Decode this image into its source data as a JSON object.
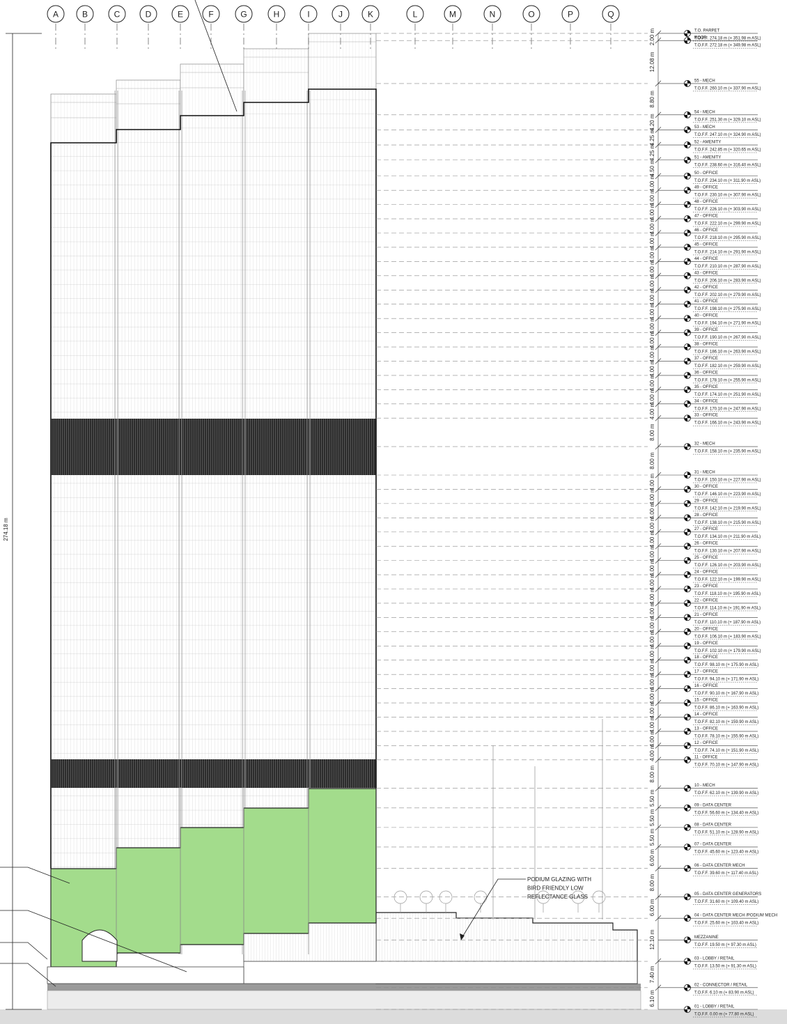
{
  "grid_lines": [
    "A",
    "B",
    "C",
    "D",
    "E",
    "F",
    "G",
    "H",
    "I",
    "J",
    "K",
    "L",
    "M",
    "N",
    "O",
    "P",
    "Q"
  ],
  "overall_height": "274.18 m",
  "annotation": [
    "PODIUM GLAZING WITH",
    "BIRD FRIENDLY LOW",
    "REFLECTANCE GLASS"
  ],
  "levels": [
    {
      "name": "T.O. PARPET",
      "elevation": "T.O.F.F. 274.18 m (+ 351.98 m ASL)"
    },
    {
      "name": "ROOF",
      "elevation": "T.O.F.F. 272.18 m (+ 349.98 m ASL)"
    },
    {
      "name": "55 - MECH",
      "elevation": "T.O.F.F. 260.10 m (+ 337.90 m ASL)"
    },
    {
      "name": "54 - MECH",
      "elevation": "T.O.F.F. 251.30 m (+ 329.10 m ASL)"
    },
    {
      "name": "53 - MECH",
      "elevation": "T.O.F.F. 247.10 m (+ 324.90 m ASL)"
    },
    {
      "name": "52 - AMENITY",
      "elevation": "T.O.F.F. 242.85 m (+ 320.65 m ASL)"
    },
    {
      "name": "51 - AMENITY",
      "elevation": "T.O.F.F. 238.60 m (+ 316.40 m ASL)"
    },
    {
      "name": "50 - OFFICE",
      "elevation": "T.O.F.F. 234.10 m (+ 311.90 m ASL)"
    },
    {
      "name": "49 - OFFICE",
      "elevation": "T.O.F.F. 230.10 m (+ 307.90 m ASL)"
    },
    {
      "name": "48 - OFFICE",
      "elevation": "T.O.F.F. 226.10 m (+ 303.90 m ASL)"
    },
    {
      "name": "47 - OFFICE",
      "elevation": "T.O.F.F. 222.10 m (+ 299.90 m ASL)"
    },
    {
      "name": "46 - OFFICE",
      "elevation": "T.O.F.F. 218.10 m (+ 295.90 m ASL)"
    },
    {
      "name": "45 - OFFICE",
      "elevation": "T.O.F.F. 214.10 m (+ 291.90 m ASL)"
    },
    {
      "name": "44 - OFFICE",
      "elevation": "T.O.F.F. 210.10 m (+ 287.90 m ASL)"
    },
    {
      "name": "43 - OFFICE",
      "elevation": "T.O.F.F. 206.10 m (+ 283.90 m ASL)"
    },
    {
      "name": "42 - OFFICE",
      "elevation": "T.O.F.F. 202.10 m (+ 279.90 m ASL)"
    },
    {
      "name": "41 - OFFICE",
      "elevation": "T.O.F.F. 198.10 m (+ 275.90 m ASL)"
    },
    {
      "name": "40 - OFFICE",
      "elevation": "T.O.F.F. 194.10 m (+ 271.90 m ASL)"
    },
    {
      "name": "39 - OFFICE",
      "elevation": "T.O.F.F. 190.10 m (+ 267.90 m ASL)"
    },
    {
      "name": "38 - OFFICE",
      "elevation": "T.O.F.F. 186.10 m (+ 263.90 m ASL)"
    },
    {
      "name": "37 - OFFICE",
      "elevation": "T.O.F.F. 182.10 m (+ 259.90 m ASL)"
    },
    {
      "name": "36 - OFFICE",
      "elevation": "T.O.F.F. 178.10 m (+ 255.90 m ASL)"
    },
    {
      "name": "35 - OFFICE",
      "elevation": "T.O.F.F. 174.10 m (+ 251.90 m ASL)"
    },
    {
      "name": "34 - OFFICE",
      "elevation": "T.O.F.F. 170.10 m (+ 247.90 m ASL)"
    },
    {
      "name": "33 - OFFICE",
      "elevation": "T.O.F.F. 166.10 m (+ 243.90 m ASL)"
    },
    {
      "name": "32 - MECH",
      "elevation": "T.O.F.F. 158.10 m (+ 235.90 m ASL)"
    },
    {
      "name": "31 - MECH",
      "elevation": "T.O.F.F. 150.10 m (+ 227.90 m ASL)"
    },
    {
      "name": "30 - OFFICE",
      "elevation": "T.O.F.F. 146.10 m (+ 223.90 m ASL)"
    },
    {
      "name": "29 - OFFICE",
      "elevation": "T.O.F.F. 142.10 m (+ 219.90 m ASL)"
    },
    {
      "name": "28 - OFFICE",
      "elevation": "T.O.F.F. 138.10 m (+ 215.90 m ASL)"
    },
    {
      "name": "27 - OFFICE",
      "elevation": "T.O.F.F. 134.10 m (+ 211.90 m ASL)"
    },
    {
      "name": "26 - OFFICE",
      "elevation": "T.O.F.F. 130.10 m (+ 207.90 m ASL)"
    },
    {
      "name": "25 - OFFICE",
      "elevation": "T.O.F.F. 126.10 m (+ 203.90 m ASL)"
    },
    {
      "name": "24 - OFFICE",
      "elevation": "T.O.F.F. 122.10 m (+ 199.90 m ASL)"
    },
    {
      "name": "23 - OFFICE",
      "elevation": "T.O.F.F. 118.10 m (+ 195.90 m ASL)"
    },
    {
      "name": "22 - OFFICE",
      "elevation": "T.O.F.F. 114.10 m (+ 191.90 m ASL)"
    },
    {
      "name": "21 - OFFICE",
      "elevation": "T.O.F.F. 110.10 m (+ 187.90 m ASL)"
    },
    {
      "name": "20 - OFFICE",
      "elevation": "T.O.F.F. 106.10 m (+ 183.90 m ASL)"
    },
    {
      "name": "19 - OFFICE",
      "elevation": "T.O.F.F. 102.10 m (+ 179.90 m ASL)"
    },
    {
      "name": "18 - OFFICE",
      "elevation": "T.O.F.F. 98.10 m (+ 175.90 m ASL)"
    },
    {
      "name": "17 - OFFICE",
      "elevation": "T.O.F.F. 94.10 m (+ 171.90 m ASL)"
    },
    {
      "name": "16 - OFFICE",
      "elevation": "T.O.F.F. 90.10 m (+ 167.90 m ASL)"
    },
    {
      "name": "15 - OFFICE",
      "elevation": "T.O.F.F. 86.10 m (+ 163.90 m ASL)"
    },
    {
      "name": "14 - OFFICE",
      "elevation": "T.O.F.F. 82.10 m (+ 159.90 m ASL)"
    },
    {
      "name": "13 - OFFICE",
      "elevation": "T.O.F.F. 78.10 m (+ 155.90 m ASL)"
    },
    {
      "name": "12 - OFFICE",
      "elevation": "T.O.F.F. 74.10 m (+ 151.90 m ASL)"
    },
    {
      "name": "11 - OFFICE",
      "elevation": "T.O.F.F. 70.10 m (+ 147.90 m ASL)"
    },
    {
      "name": "10 - MECH",
      "elevation": "T.O.F.F. 62.10 m (+ 139.90 m ASL)"
    },
    {
      "name": "09 - DATA CENTER",
      "elevation": "T.O.F.F. 56.60 m (+ 134.40 m ASL)"
    },
    {
      "name": "08 - DATA CENTER",
      "elevation": "T.O.F.F. 51.10 m (+ 128.90 m ASL)"
    },
    {
      "name": "07 - DATA CENTER",
      "elevation": "T.O.F.F. 45.60 m (+ 123.40 m ASL)"
    },
    {
      "name": "06 - DATA CENTER MECH",
      "elevation": "T.O.F.F. 39.60 m (+ 117.40 m ASL)"
    },
    {
      "name": "05 - DATA CENTER GENERATORS",
      "elevation": "T.O.F.F. 31.60 m (+ 109.40 m ASL)"
    },
    {
      "name": "04 - DATA CENTER MECH /PODIUM MECH",
      "elevation": "T.O.F.F. 25.60 m (+ 103.40 m ASL)"
    },
    {
      "name": "MEZZANINE",
      "elevation": "T.O.F.F. 19.50 m (+ 97.30 m ASL)"
    },
    {
      "name": "03 - LOBBY / RETAIL",
      "elevation": "T.O.F.F. 13.50 m (+ 91.30 m ASL)"
    },
    {
      "name": "02 - CONNECTOR / RETAIL",
      "elevation": "T.O.F.F. 6.10 m (+ 83.90 m ASL)"
    },
    {
      "name": "01 - LOBBY / RETAIL",
      "elevation": "T.O.F.F. 0.00 m (+ 77.80 m ASL)"
    }
  ],
  "dimensions": [
    "2.00 m",
    "12.08 m",
    "8.80 m",
    "4.20 m",
    "4.25 m",
    "4.25 m",
    "4.50 m",
    "4.00 m",
    "4.00 m",
    "4.00 m",
    "4.00 m",
    "4.00 m",
    "4.00 m",
    "4.00 m",
    "4.00 m",
    "4.00 m",
    "4.00 m",
    "4.00 m",
    "4.00 m",
    "4.00 m",
    "4.00 m",
    "4.00 m",
    "4.00 m",
    "4.00 m",
    "8.00 m",
    "8.00 m",
    "4.00 m",
    "4.00 m",
    "4.00 m",
    "4.00 m",
    "4.00 m",
    "4.00 m",
    "4.00 m",
    "4.00 m",
    "4.00 m",
    "4.00 m",
    "4.00 m",
    "4.00 m",
    "4.00 m",
    "4.00 m",
    "4.00 m",
    "4.00 m",
    "4.00 m",
    "4.00 m",
    "4.00 m",
    "4.00 m",
    "8.00 m",
    "5.50 m",
    "5.50 m",
    "5.50 m",
    "6.00 m",
    "8.00 m",
    "6.00 m",
    "12.10 m",
    "7.40 m",
    "6.10 m"
  ]
}
